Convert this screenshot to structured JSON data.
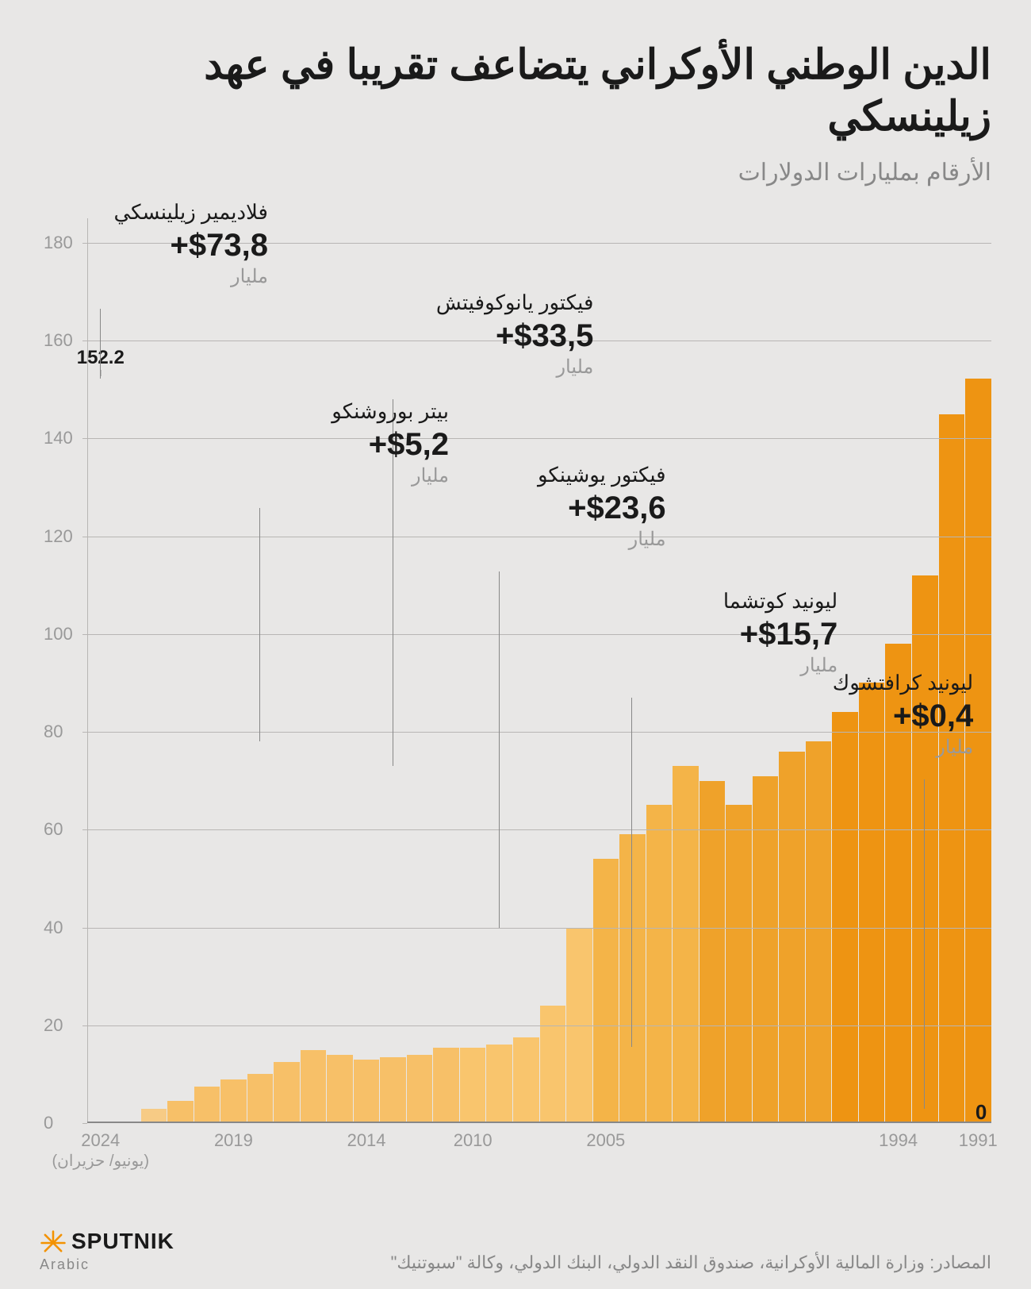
{
  "title": "الدين الوطني الأوكراني يتضاعف تقريبا في عهد زيلينسكي",
  "subtitle": "الأرقام بمليارات الدولارات",
  "chart": {
    "type": "bar",
    "y_max": 185,
    "y_ticks": [
      0,
      20,
      40,
      60,
      80,
      100,
      120,
      140,
      160,
      180
    ],
    "x_labels": [
      {
        "year": "1991",
        "idx": 0
      },
      {
        "year": "1994",
        "idx": 3
      },
      {
        "year": "2005",
        "idx": 14
      },
      {
        "year": "2010",
        "idx": 19
      },
      {
        "year": "2014",
        "idx": 23
      },
      {
        "year": "2019",
        "idx": 28
      },
      {
        "year": "2024",
        "idx": 33
      }
    ],
    "x_sublabel": "(يونيو/ حزيران)",
    "peak_label": "152.2",
    "zero_label": "0",
    "bars": [
      {
        "y": 1991,
        "v": 0.0,
        "c": "#f7cb85"
      },
      {
        "y": 1992,
        "v": 0.4,
        "c": "#f7cb85"
      },
      {
        "y": 1993,
        "v": 3.0,
        "c": "#f7cb85"
      },
      {
        "y": 1994,
        "v": 4.5,
        "c": "#f7c068"
      },
      {
        "y": 1995,
        "v": 7.5,
        "c": "#f7c068"
      },
      {
        "y": 1996,
        "v": 9.0,
        "c": "#f7c068"
      },
      {
        "y": 1997,
        "v": 10.0,
        "c": "#f7c068"
      },
      {
        "y": 1998,
        "v": 12.5,
        "c": "#f7c068"
      },
      {
        "y": 1999,
        "v": 15.0,
        "c": "#f7c068"
      },
      {
        "y": 2000,
        "v": 14.0,
        "c": "#f7c068"
      },
      {
        "y": 2001,
        "v": 13.0,
        "c": "#f7c068"
      },
      {
        "y": 2002,
        "v": 13.5,
        "c": "#f7c068"
      },
      {
        "y": 2003,
        "v": 14.0,
        "c": "#f7c068"
      },
      {
        "y": 2004,
        "v": 15.5,
        "c": "#f7c068"
      },
      {
        "y": 2005,
        "v": 15.5,
        "c": "#f9c56d"
      },
      {
        "y": 2006,
        "v": 16.0,
        "c": "#f9c56d"
      },
      {
        "y": 2007,
        "v": 17.5,
        "c": "#f9c56d"
      },
      {
        "y": 2008,
        "v": 24.0,
        "c": "#f9c56d"
      },
      {
        "y": 2009,
        "v": 40.0,
        "c": "#f9c56d"
      },
      {
        "y": 2010,
        "v": 54.0,
        "c": "#f4b448"
      },
      {
        "y": 2011,
        "v": 59.0,
        "c": "#f4b448"
      },
      {
        "y": 2012,
        "v": 65.0,
        "c": "#f4b448"
      },
      {
        "y": 2013,
        "v": 73.0,
        "c": "#f4b448"
      },
      {
        "y": 2014,
        "v": 70.0,
        "c": "#efa22a"
      },
      {
        "y": 2015,
        "v": 65.0,
        "c": "#efa22a"
      },
      {
        "y": 2016,
        "v": 71.0,
        "c": "#efa22a"
      },
      {
        "y": 2017,
        "v": 76.0,
        "c": "#efa22a"
      },
      {
        "y": 2018,
        "v": 78.0,
        "c": "#efa22a"
      },
      {
        "y": 2019,
        "v": 84.0,
        "c": "#ee9412"
      },
      {
        "y": 2020,
        "v": 90.0,
        "c": "#ee9412"
      },
      {
        "y": 2021,
        "v": 98.0,
        "c": "#ee9412"
      },
      {
        "y": 2022,
        "v": 112.0,
        "c": "#ee9412"
      },
      {
        "y": 2023,
        "v": 145.0,
        "c": "#ee9412"
      },
      {
        "y": 2024,
        "v": 152.2,
        "c": "#ee9412"
      }
    ],
    "presidents": [
      {
        "name": "ليونيد كرافتشوك",
        "value": "+$0,4",
        "unit": "مليار",
        "lead_bar": 2,
        "box_right_pct": 2,
        "box_top_pct": 50
      },
      {
        "name": "ليونيد كوتشما",
        "value": "+$15,7",
        "unit": "مليار",
        "lead_bar": 13,
        "box_right_pct": 17,
        "box_top_pct": 41
      },
      {
        "name": "فيكتور يوشينكو",
        "value": "+$23,6",
        "unit": "مليار",
        "lead_bar": 18,
        "box_right_pct": 36,
        "box_top_pct": 27
      },
      {
        "name": "فيكتور يانوكوفيتش",
        "value": "+$33,5",
        "unit": "مليار",
        "lead_bar": 22,
        "box_right_pct": 44,
        "box_top_pct": 8
      },
      {
        "name": "بيتر بوروشنكو",
        "value": "+$5,2",
        "unit": "مليار",
        "lead_bar": 27,
        "box_right_pct": 60,
        "box_top_pct": 20
      },
      {
        "name": "فلاديمير زيلينسكي",
        "value": "+$73,8",
        "unit": "مليار",
        "lead_bar": 33,
        "box_right_pct": 80,
        "box_top_pct": -2
      }
    ]
  },
  "sources_label": "المصادر:",
  "sources_text": "وزارة المالية الأوكرانية، صندوق النقد الدولي، البنك الدولي، وكالة \"سبوتنيك\"",
  "logo_top": "SPUTNIK",
  "logo_bot": "Arabic",
  "colors": {
    "bg": "#e8e7e6",
    "text": "#1a1a1a",
    "muted": "#999999",
    "grid": "#b8b6b4",
    "logo_accent": "#f39200"
  }
}
